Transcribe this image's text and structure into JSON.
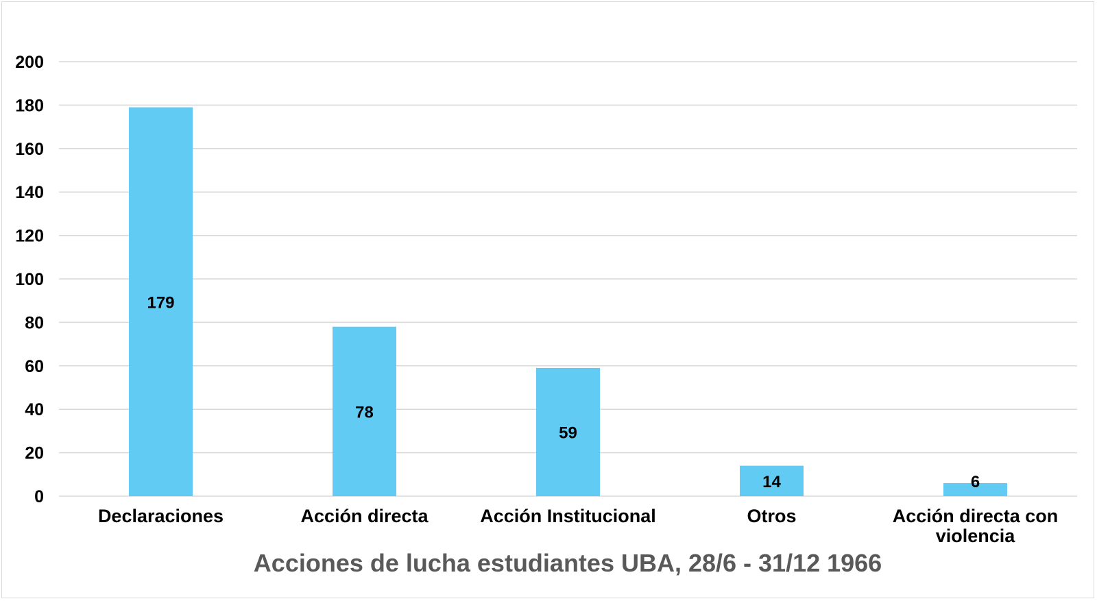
{
  "chart_data": {
    "type": "bar",
    "title": "Acciones de lucha estudiantes UBA, 28/6 - 31/12 1966",
    "categories": [
      [
        "Declaraciones"
      ],
      [
        "Acción directa"
      ],
      [
        "Acción Institucional"
      ],
      [
        "Otros"
      ],
      [
        "Acción directa con",
        "violencia"
      ]
    ],
    "values": [
      179,
      78,
      59,
      14,
      6
    ],
    "data_labels": [
      "179",
      "78",
      "59",
      "14",
      "6"
    ],
    "ylim": [
      0,
      200
    ],
    "yticks": [
      0,
      20,
      40,
      60,
      80,
      100,
      120,
      140,
      160,
      180,
      200
    ],
    "ytick_labels": [
      "0",
      "20",
      "40",
      "60",
      "80",
      "100",
      "120",
      "140",
      "160",
      "180",
      "200"
    ],
    "grid": true,
    "legend": "none",
    "bar_color": "#61CBF3"
  }
}
